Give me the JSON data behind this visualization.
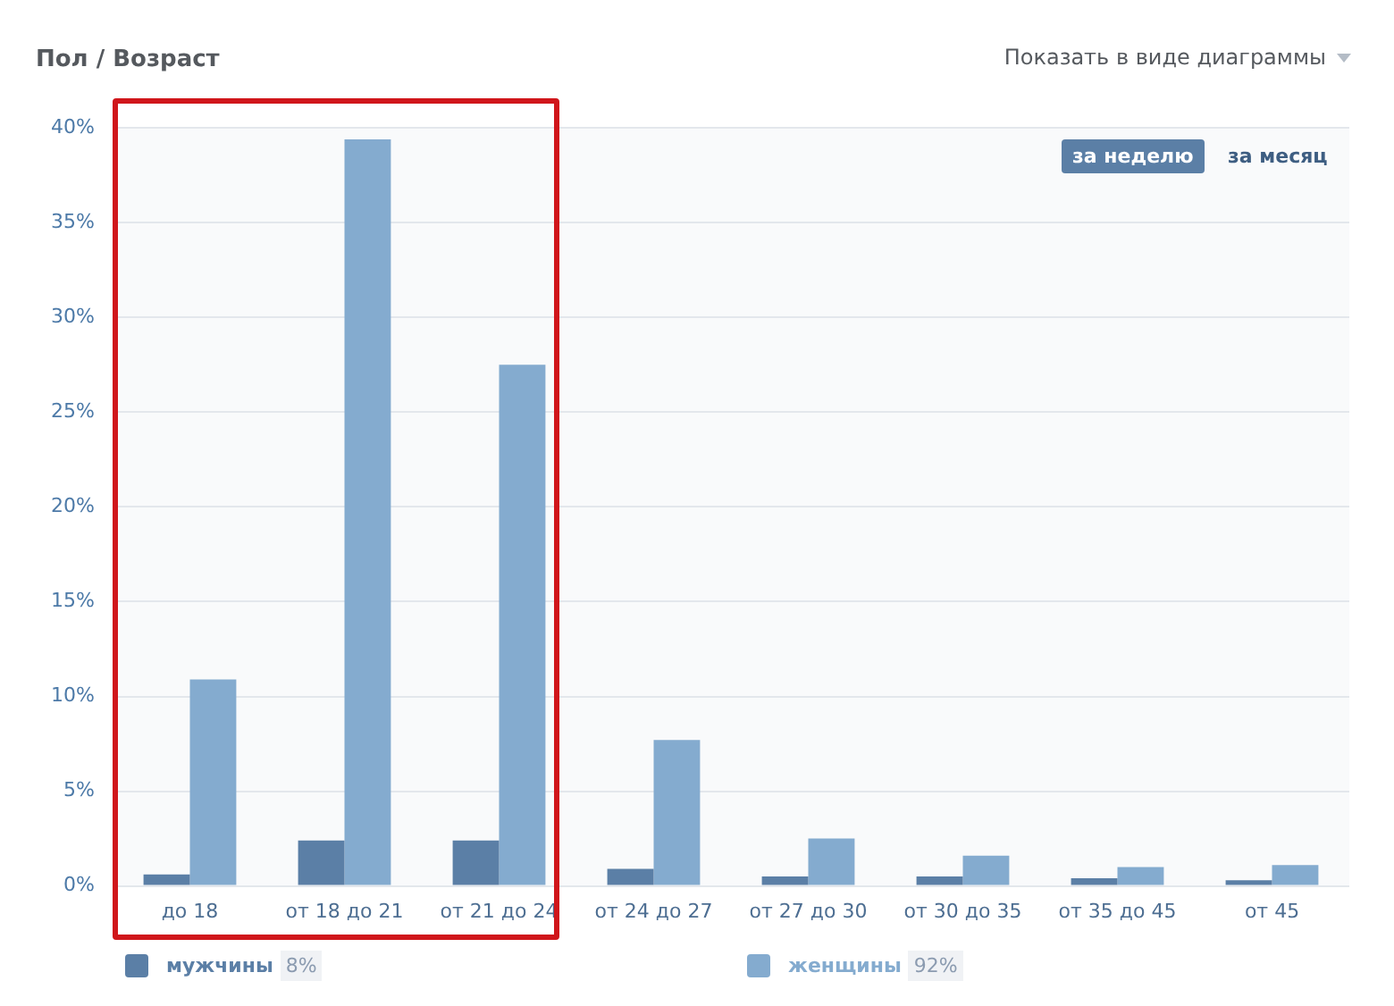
{
  "chart_data": {
    "type": "bar",
    "title": "Пол / Возраст",
    "categories": [
      "до 18",
      "от 18 до 21",
      "от 21 до 24",
      "от 24 до 27",
      "от 27 до 30",
      "от 30 до 35",
      "от 35 до 45",
      "от 45"
    ],
    "series": [
      {
        "name": "мужчины",
        "color": "#5b7fa6",
        "values": [
          0.6,
          2.4,
          2.4,
          0.9,
          0.5,
          0.5,
          0.4,
          0.3
        ]
      },
      {
        "name": "женщины",
        "color": "#84abcf",
        "values": [
          10.9,
          39.4,
          27.5,
          7.7,
          2.5,
          1.6,
          1.0,
          1.1
        ]
      }
    ],
    "ylim": [
      0,
      40
    ],
    "yticks": [
      {
        "value": 0,
        "label": "0%"
      },
      {
        "value": 5,
        "label": "5%"
      },
      {
        "value": 10,
        "label": "10%"
      },
      {
        "value": 15,
        "label": "15%"
      },
      {
        "value": 20,
        "label": "20%"
      },
      {
        "value": 25,
        "label": "25%"
      },
      {
        "value": 30,
        "label": "30%"
      },
      {
        "value": 35,
        "label": "35%"
      },
      {
        "value": 40,
        "label": "40%"
      }
    ],
    "grid": "y",
    "legend": "bottom left",
    "annotations": [
      "Показать в виде диаграммы",
      "за неделю",
      "за месяц",
      "8%",
      "92%"
    ]
  }
}
